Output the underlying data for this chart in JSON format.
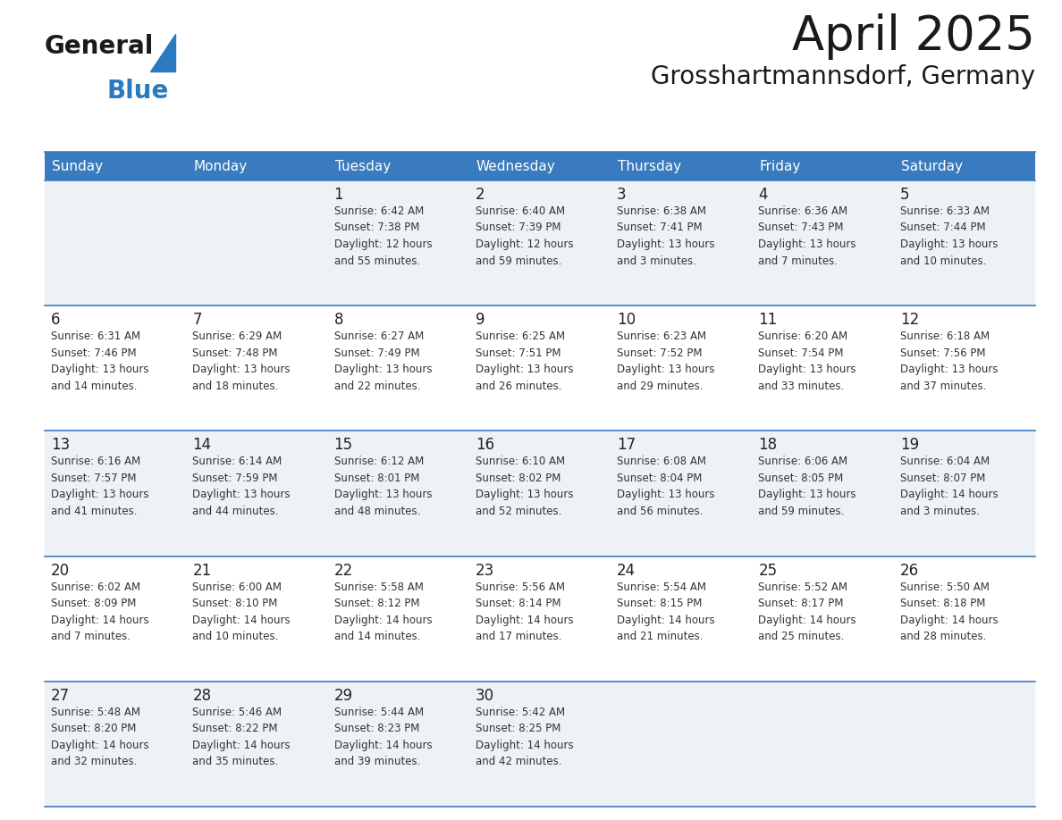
{
  "title": "April 2025",
  "subtitle": "Grosshartmannsdorf, Germany",
  "days_of_week": [
    "Sunday",
    "Monday",
    "Tuesday",
    "Wednesday",
    "Thursday",
    "Friday",
    "Saturday"
  ],
  "header_bg_color": "#3a7bbf",
  "header_text_color": "#ffffff",
  "row_bg_even": "#eef2f7",
  "row_bg_odd": "#ffffff",
  "cell_text_color": "#333333",
  "day_num_color": "#222222",
  "border_color": "#3a7bbf",
  "sep_line_color": "#3a7bbf",
  "title_color": "#1a1a1a",
  "subtitle_color": "#1a1a1a",
  "logo_general_color": "#1a1a1a",
  "logo_blue_color": "#2b7abf",
  "calendar": [
    [
      {
        "day": null,
        "info": null
      },
      {
        "day": null,
        "info": null
      },
      {
        "day": 1,
        "info": "Sunrise: 6:42 AM\nSunset: 7:38 PM\nDaylight: 12 hours\nand 55 minutes."
      },
      {
        "day": 2,
        "info": "Sunrise: 6:40 AM\nSunset: 7:39 PM\nDaylight: 12 hours\nand 59 minutes."
      },
      {
        "day": 3,
        "info": "Sunrise: 6:38 AM\nSunset: 7:41 PM\nDaylight: 13 hours\nand 3 minutes."
      },
      {
        "day": 4,
        "info": "Sunrise: 6:36 AM\nSunset: 7:43 PM\nDaylight: 13 hours\nand 7 minutes."
      },
      {
        "day": 5,
        "info": "Sunrise: 6:33 AM\nSunset: 7:44 PM\nDaylight: 13 hours\nand 10 minutes."
      }
    ],
    [
      {
        "day": 6,
        "info": "Sunrise: 6:31 AM\nSunset: 7:46 PM\nDaylight: 13 hours\nand 14 minutes."
      },
      {
        "day": 7,
        "info": "Sunrise: 6:29 AM\nSunset: 7:48 PM\nDaylight: 13 hours\nand 18 minutes."
      },
      {
        "day": 8,
        "info": "Sunrise: 6:27 AM\nSunset: 7:49 PM\nDaylight: 13 hours\nand 22 minutes."
      },
      {
        "day": 9,
        "info": "Sunrise: 6:25 AM\nSunset: 7:51 PM\nDaylight: 13 hours\nand 26 minutes."
      },
      {
        "day": 10,
        "info": "Sunrise: 6:23 AM\nSunset: 7:52 PM\nDaylight: 13 hours\nand 29 minutes."
      },
      {
        "day": 11,
        "info": "Sunrise: 6:20 AM\nSunset: 7:54 PM\nDaylight: 13 hours\nand 33 minutes."
      },
      {
        "day": 12,
        "info": "Sunrise: 6:18 AM\nSunset: 7:56 PM\nDaylight: 13 hours\nand 37 minutes."
      }
    ],
    [
      {
        "day": 13,
        "info": "Sunrise: 6:16 AM\nSunset: 7:57 PM\nDaylight: 13 hours\nand 41 minutes."
      },
      {
        "day": 14,
        "info": "Sunrise: 6:14 AM\nSunset: 7:59 PM\nDaylight: 13 hours\nand 44 minutes."
      },
      {
        "day": 15,
        "info": "Sunrise: 6:12 AM\nSunset: 8:01 PM\nDaylight: 13 hours\nand 48 minutes."
      },
      {
        "day": 16,
        "info": "Sunrise: 6:10 AM\nSunset: 8:02 PM\nDaylight: 13 hours\nand 52 minutes."
      },
      {
        "day": 17,
        "info": "Sunrise: 6:08 AM\nSunset: 8:04 PM\nDaylight: 13 hours\nand 56 minutes."
      },
      {
        "day": 18,
        "info": "Sunrise: 6:06 AM\nSunset: 8:05 PM\nDaylight: 13 hours\nand 59 minutes."
      },
      {
        "day": 19,
        "info": "Sunrise: 6:04 AM\nSunset: 8:07 PM\nDaylight: 14 hours\nand 3 minutes."
      }
    ],
    [
      {
        "day": 20,
        "info": "Sunrise: 6:02 AM\nSunset: 8:09 PM\nDaylight: 14 hours\nand 7 minutes."
      },
      {
        "day": 21,
        "info": "Sunrise: 6:00 AM\nSunset: 8:10 PM\nDaylight: 14 hours\nand 10 minutes."
      },
      {
        "day": 22,
        "info": "Sunrise: 5:58 AM\nSunset: 8:12 PM\nDaylight: 14 hours\nand 14 minutes."
      },
      {
        "day": 23,
        "info": "Sunrise: 5:56 AM\nSunset: 8:14 PM\nDaylight: 14 hours\nand 17 minutes."
      },
      {
        "day": 24,
        "info": "Sunrise: 5:54 AM\nSunset: 8:15 PM\nDaylight: 14 hours\nand 21 minutes."
      },
      {
        "day": 25,
        "info": "Sunrise: 5:52 AM\nSunset: 8:17 PM\nDaylight: 14 hours\nand 25 minutes."
      },
      {
        "day": 26,
        "info": "Sunrise: 5:50 AM\nSunset: 8:18 PM\nDaylight: 14 hours\nand 28 minutes."
      }
    ],
    [
      {
        "day": 27,
        "info": "Sunrise: 5:48 AM\nSunset: 8:20 PM\nDaylight: 14 hours\nand 32 minutes."
      },
      {
        "day": 28,
        "info": "Sunrise: 5:46 AM\nSunset: 8:22 PM\nDaylight: 14 hours\nand 35 minutes."
      },
      {
        "day": 29,
        "info": "Sunrise: 5:44 AM\nSunset: 8:23 PM\nDaylight: 14 hours\nand 39 minutes."
      },
      {
        "day": 30,
        "info": "Sunrise: 5:42 AM\nSunset: 8:25 PM\nDaylight: 14 hours\nand 42 minutes."
      },
      {
        "day": null,
        "info": null
      },
      {
        "day": null,
        "info": null
      },
      {
        "day": null,
        "info": null
      }
    ]
  ]
}
